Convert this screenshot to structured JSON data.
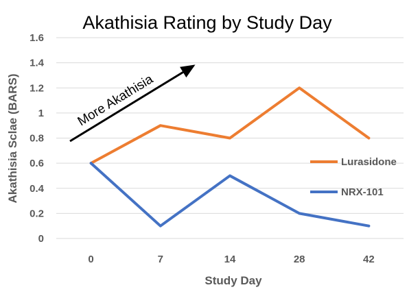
{
  "chart_data": {
    "type": "line",
    "title": "Akathisia Rating by Study Day",
    "xlabel": "Study Day",
    "ylabel": "Akathisia Sclae (BARS)",
    "categories": [
      "0",
      "7",
      "14",
      "28",
      "42"
    ],
    "ylim": [
      0,
      1.6
    ],
    "yticks": [
      "0",
      "0.2",
      "0.4",
      "0.6",
      "0.8",
      "1",
      "1.2",
      "1.4",
      "1.6"
    ],
    "grid": true,
    "legend_position": "right",
    "series": [
      {
        "name": "Lurasidone",
        "values": [
          0.6,
          0.9,
          0.8,
          1.2,
          0.8
        ],
        "color": "#ED7D31"
      },
      {
        "name": "NRX-101",
        "values": [
          0.6,
          0.1,
          0.5,
          0.2,
          0.1
        ],
        "color": "#4472C4"
      }
    ],
    "annotation": {
      "text": "More Akathisia",
      "icon": "arrow-up-right-icon"
    }
  }
}
